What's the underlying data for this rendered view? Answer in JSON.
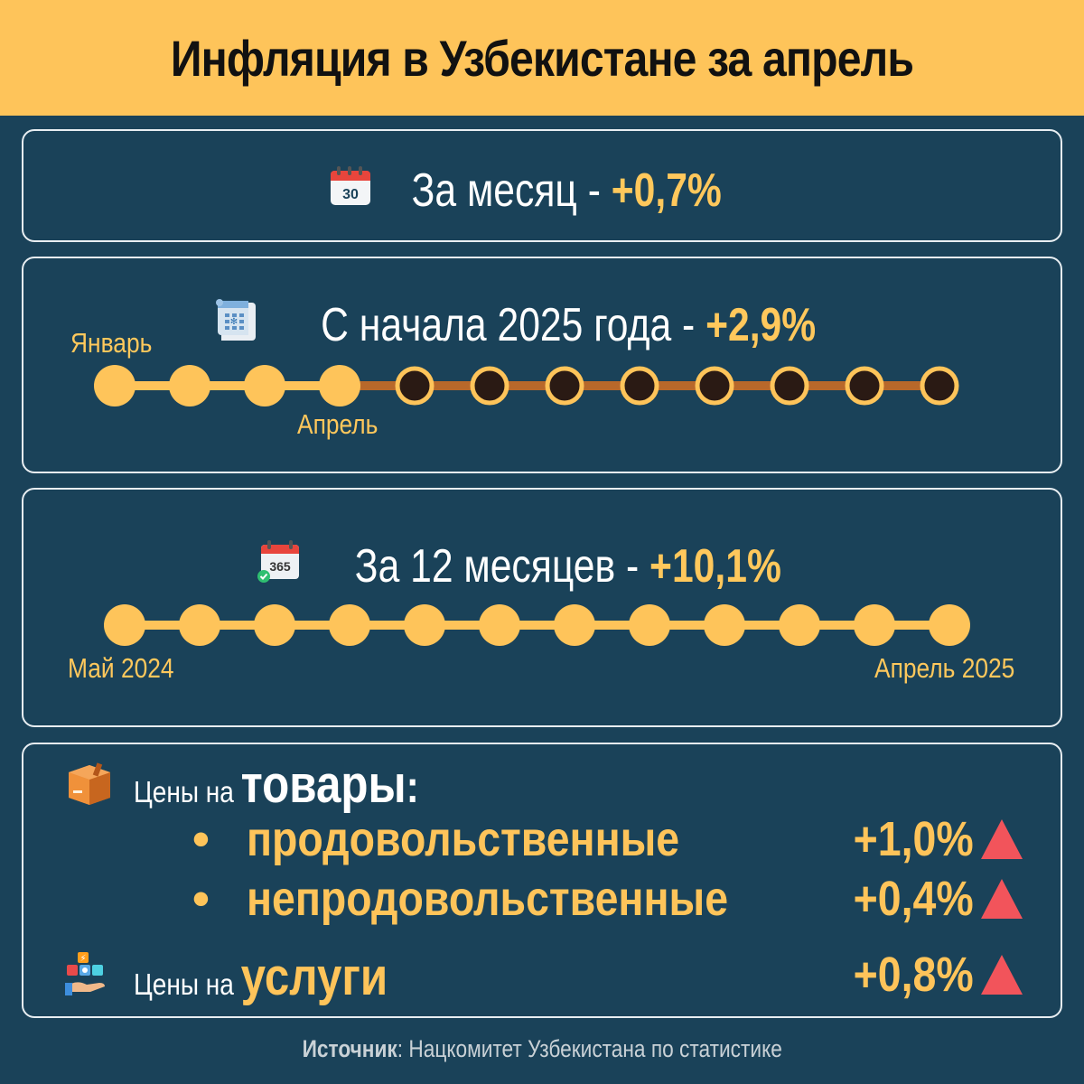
{
  "title": "Инфляция в Узбекистане за апрель",
  "month": {
    "icon": "calendar-30-icon",
    "icon_text": "30",
    "label": "За месяц - ",
    "value": "+0,7%"
  },
  "ytd": {
    "icon": "calendar-page-icon",
    "label": "С начала 2025 года - ",
    "value": "+2,9%",
    "start_label": "Январь",
    "current_label": "Апрель",
    "total_months": 12,
    "elapsed_months": 4
  },
  "annual": {
    "icon": "calendar-365-icon",
    "icon_text": "365",
    "label": "За 12 месяцев - ",
    "value": "+10,1%",
    "start_label": "Май 2024",
    "end_label": "Апрель 2025",
    "total_months": 12
  },
  "goods": {
    "icon": "box-icon",
    "prefix": "Цены на ",
    "word": "товары",
    "colon": ":",
    "bullet": "•",
    "items": [
      {
        "name": "продовольственные",
        "value": "+1,0%",
        "trend_icon": "up-triangle-icon"
      },
      {
        "name": "непродовольственные",
        "value": "+0,4%",
        "trend_icon": "up-triangle-icon"
      }
    ]
  },
  "services": {
    "icon": "services-hand-icon",
    "prefix": "Цены на ",
    "word": "услуги",
    "value": "+0,8%",
    "trend_icon": "up-triangle-icon"
  },
  "source": {
    "label": "Источник",
    "text": ": Нацкомитет Узбекистана по статистике"
  },
  "colors": {
    "background": "#1a4259",
    "accent": "#fec45a",
    "timeline_future": "#b8682a",
    "dot_future": "#2a1a14",
    "up_arrow": "#f2545b"
  }
}
